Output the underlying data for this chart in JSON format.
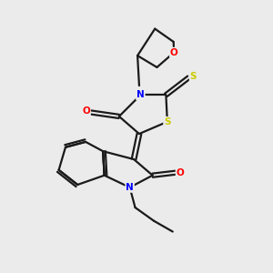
{
  "background_color": "#ebebeb",
  "bond_color": "#1a1a1a",
  "N_color": "#0000ff",
  "O_color": "#ff0000",
  "S_color": "#cccc00",
  "line_width": 1.6,
  "figsize": [
    3.0,
    3.0
  ],
  "dpi": 100,
  "xlim": [
    0,
    10
  ],
  "ylim": [
    0,
    10
  ]
}
